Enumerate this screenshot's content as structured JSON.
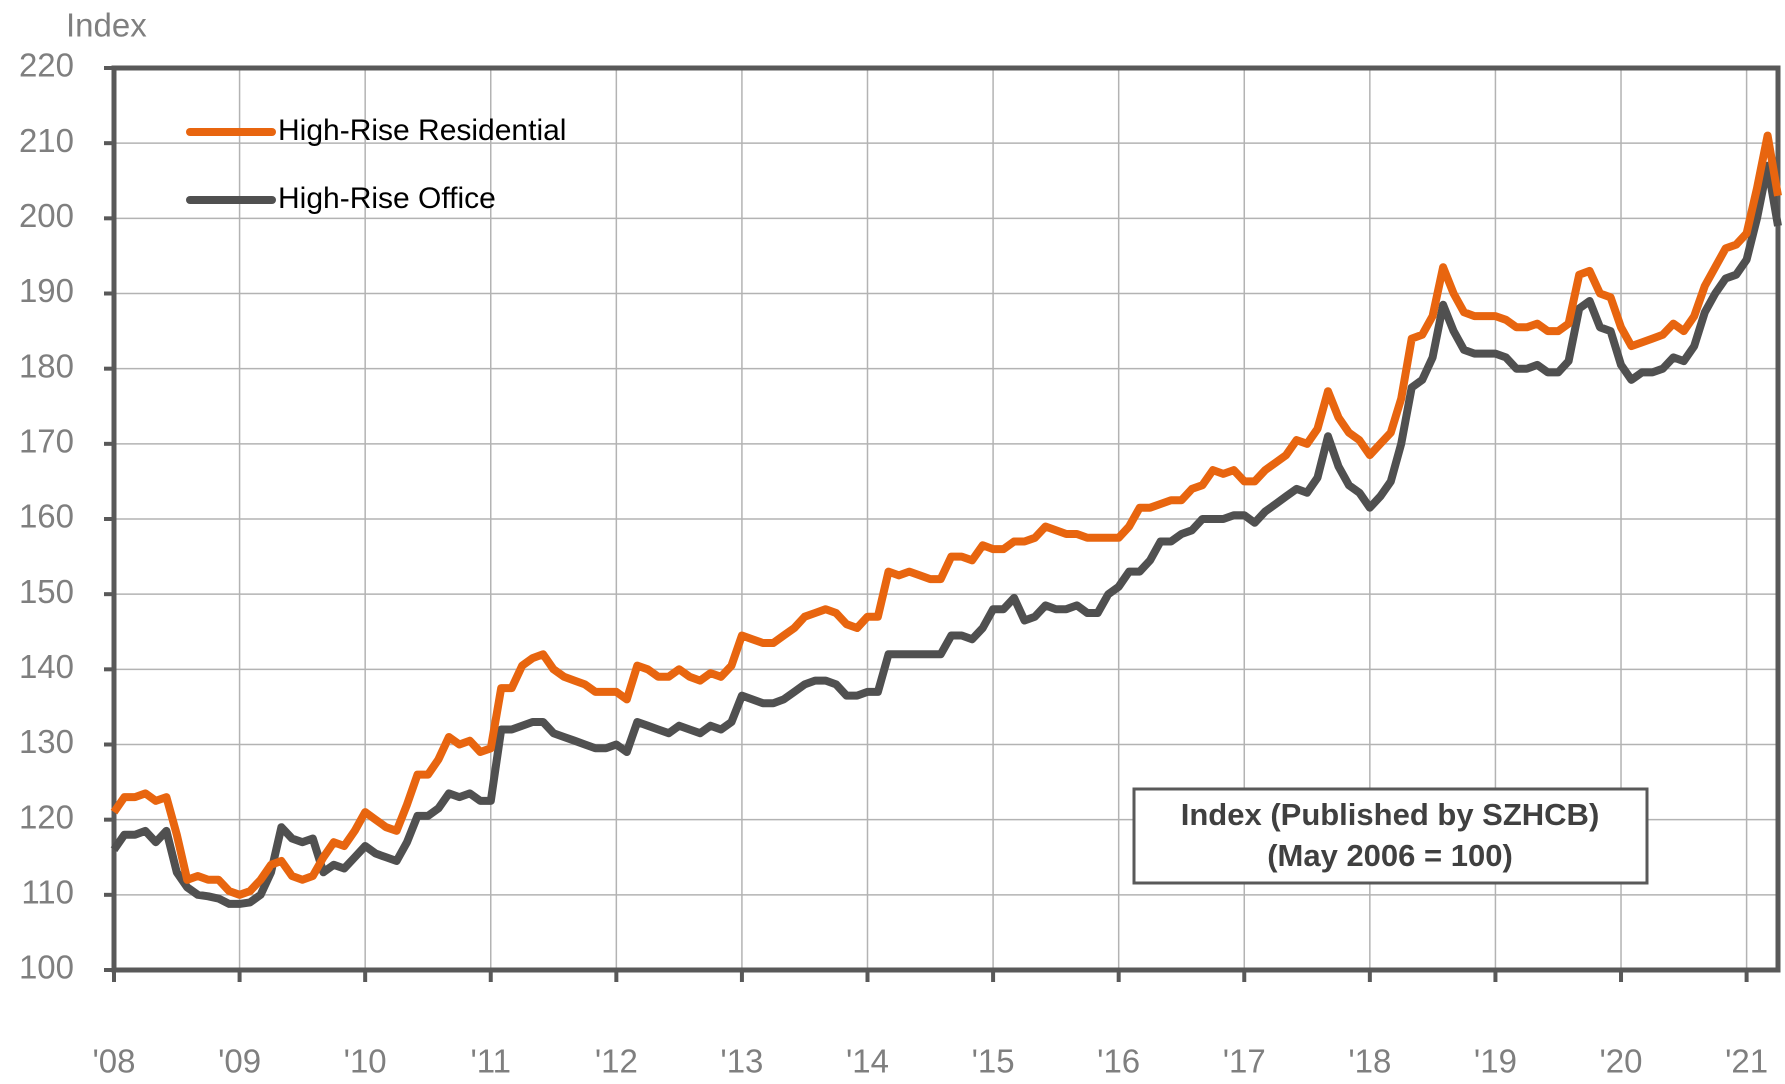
{
  "chart_data": {
    "type": "line",
    "y_axis_label": "Index",
    "annotation": [
      "Index (Published by SZHCB)",
      "(May 2006 = 100)"
    ],
    "x": [
      2008,
      2008.083,
      2008.167,
      2008.25,
      2008.333,
      2008.417,
      2008.5,
      2008.583,
      2008.667,
      2008.75,
      2008.833,
      2008.917,
      2009,
      2009.083,
      2009.167,
      2009.25,
      2009.333,
      2009.417,
      2009.5,
      2009.583,
      2009.667,
      2009.75,
      2009.833,
      2009.917,
      2010,
      2010.083,
      2010.167,
      2010.25,
      2010.333,
      2010.417,
      2010.5,
      2010.583,
      2010.667,
      2010.75,
      2010.833,
      2010.917,
      2011,
      2011.083,
      2011.167,
      2011.25,
      2011.333,
      2011.417,
      2011.5,
      2011.583,
      2011.667,
      2011.75,
      2011.833,
      2011.917,
      2012,
      2012.083,
      2012.167,
      2012.25,
      2012.333,
      2012.417,
      2012.5,
      2012.583,
      2012.667,
      2012.75,
      2012.833,
      2012.917,
      2013,
      2013.083,
      2013.167,
      2013.25,
      2013.333,
      2013.417,
      2013.5,
      2013.583,
      2013.667,
      2013.75,
      2013.833,
      2013.917,
      2014,
      2014.083,
      2014.167,
      2014.25,
      2014.333,
      2014.417,
      2014.5,
      2014.583,
      2014.667,
      2014.75,
      2014.833,
      2014.917,
      2015,
      2015.083,
      2015.167,
      2015.25,
      2015.333,
      2015.417,
      2015.5,
      2015.583,
      2015.667,
      2015.75,
      2015.833,
      2015.917,
      2016,
      2016.083,
      2016.167,
      2016.25,
      2016.333,
      2016.417,
      2016.5,
      2016.583,
      2016.667,
      2016.75,
      2016.833,
      2016.917,
      2017,
      2017.083,
      2017.167,
      2017.25,
      2017.333,
      2017.417,
      2017.5,
      2017.583,
      2017.667,
      2017.75,
      2017.833,
      2017.917,
      2018,
      2018.083,
      2018.167,
      2018.25,
      2018.333,
      2018.417,
      2018.5,
      2018.583,
      2018.667,
      2018.75,
      2018.833,
      2018.917,
      2019,
      2019.083,
      2019.167,
      2019.25,
      2019.333,
      2019.417,
      2019.5,
      2019.583,
      2019.667,
      2019.75,
      2019.833,
      2019.917,
      2020,
      2020.083,
      2020.167,
      2020.25,
      2020.333,
      2020.417,
      2020.5,
      2020.583,
      2020.667,
      2020.75,
      2020.833,
      2020.917,
      2021,
      2021.083,
      2021.167,
      2021.25
    ],
    "series": [
      {
        "name": "High-Rise Residential",
        "color": "#e8650f",
        "values": [
          121,
          123,
          123,
          123.5,
          122.5,
          123,
          118,
          112,
          112.5,
          112,
          112,
          110.5,
          110,
          110.5,
          112,
          114,
          114.5,
          112.5,
          112,
          112.5,
          115,
          117,
          116.5,
          118.5,
          121,
          120,
          119,
          118.5,
          122,
          126,
          126,
          128,
          131,
          130,
          130.5,
          129,
          129.5,
          137.5,
          137.5,
          140.5,
          141.5,
          142,
          140,
          139,
          138.5,
          138,
          137,
          137,
          137,
          136,
          140.5,
          140,
          139,
          139,
          140,
          139,
          138.5,
          139.5,
          139,
          140.5,
          144.5,
          144,
          143.5,
          143.5,
          144.5,
          145.5,
          147,
          147.5,
          148,
          147.5,
          146,
          145.5,
          147,
          147,
          153,
          152.5,
          153,
          152.5,
          152,
          152,
          155,
          155,
          154.5,
          156.5,
          156,
          156,
          157,
          157,
          157.5,
          159,
          158.5,
          158,
          158,
          157.5,
          157.5,
          157.5,
          157.5,
          159,
          161.5,
          161.5,
          162,
          162.5,
          162.5,
          164,
          164.5,
          166.5,
          166,
          166.5,
          165,
          165,
          166.5,
          167.5,
          168.5,
          170.5,
          170,
          172,
          177,
          173.5,
          171.5,
          170.5,
          168.5,
          170,
          171.5,
          176,
          184,
          184.5,
          187,
          193.5,
          190,
          187.5,
          187,
          187,
          187,
          186.5,
          185.5,
          185.5,
          186,
          185,
          185,
          186,
          192.5,
          193,
          190,
          189.5,
          185.5,
          183,
          183.5,
          184,
          184.5,
          186,
          185,
          187,
          191,
          193.5,
          196,
          196.5,
          198,
          204,
          211,
          203
        ]
      },
      {
        "name": "High-Rise Office",
        "color": "#505050",
        "values": [
          116,
          118,
          118,
          118.5,
          117,
          118.5,
          113,
          111,
          110,
          109.8,
          109.5,
          108.8,
          108.8,
          109,
          110,
          113,
          119,
          117.5,
          117,
          117.5,
          113,
          114,
          113.5,
          115,
          116.5,
          115.5,
          115,
          114.5,
          117,
          120.5,
          120.5,
          121.5,
          123.5,
          123,
          123.5,
          122.5,
          122.5,
          132,
          132,
          132.5,
          133,
          133,
          131.5,
          131,
          130.5,
          130,
          129.5,
          129.5,
          130,
          129,
          133,
          132.5,
          132,
          131.5,
          132.5,
          132,
          131.5,
          132.5,
          132,
          133,
          136.5,
          136,
          135.5,
          135.5,
          136,
          137,
          138,
          138.5,
          138.5,
          138,
          136.5,
          136.5,
          137,
          137,
          142,
          142,
          142,
          142,
          142,
          142,
          144.5,
          144.5,
          144,
          145.5,
          148,
          148,
          149.5,
          146.5,
          147,
          148.5,
          148,
          148,
          148.5,
          147.5,
          147.5,
          150,
          151,
          153,
          153,
          154.5,
          157,
          157,
          158,
          158.5,
          160,
          160,
          160,
          160.5,
          160.5,
          159.5,
          161,
          162,
          163,
          164,
          163.5,
          165.5,
          171,
          167,
          164.5,
          163.5,
          161.5,
          163,
          165,
          170,
          177.5,
          178.5,
          181.5,
          188.5,
          185,
          182.5,
          182,
          182,
          182,
          181.5,
          180,
          180,
          180.5,
          179.5,
          179.5,
          181,
          188,
          189,
          185.5,
          185,
          180.5,
          178.5,
          179.5,
          179.5,
          180,
          181.5,
          181,
          183,
          187.5,
          190,
          192,
          192.5,
          194.5,
          200,
          207,
          199
        ]
      }
    ],
    "xlim": [
      2008,
      2021.25
    ],
    "xticks": [
      {
        "value": 2008,
        "label": "'08"
      },
      {
        "value": 2009,
        "label": "'09"
      },
      {
        "value": 2010,
        "label": "'10"
      },
      {
        "value": 2011,
        "label": "'11"
      },
      {
        "value": 2012,
        "label": "'12"
      },
      {
        "value": 2013,
        "label": "'13"
      },
      {
        "value": 2014,
        "label": "'14"
      },
      {
        "value": 2015,
        "label": "'15"
      },
      {
        "value": 2016,
        "label": "'16"
      },
      {
        "value": 2017,
        "label": "'17"
      },
      {
        "value": 2018,
        "label": "'18"
      },
      {
        "value": 2019,
        "label": "'19"
      },
      {
        "value": 2020,
        "label": "'20"
      },
      {
        "value": 2021,
        "label": "'21"
      }
    ],
    "ylim": [
      100,
      220
    ],
    "yticks": [
      100,
      110,
      120,
      130,
      140,
      150,
      160,
      170,
      180,
      190,
      200,
      210,
      220
    ],
    "grid": true,
    "legend": "top-left"
  }
}
